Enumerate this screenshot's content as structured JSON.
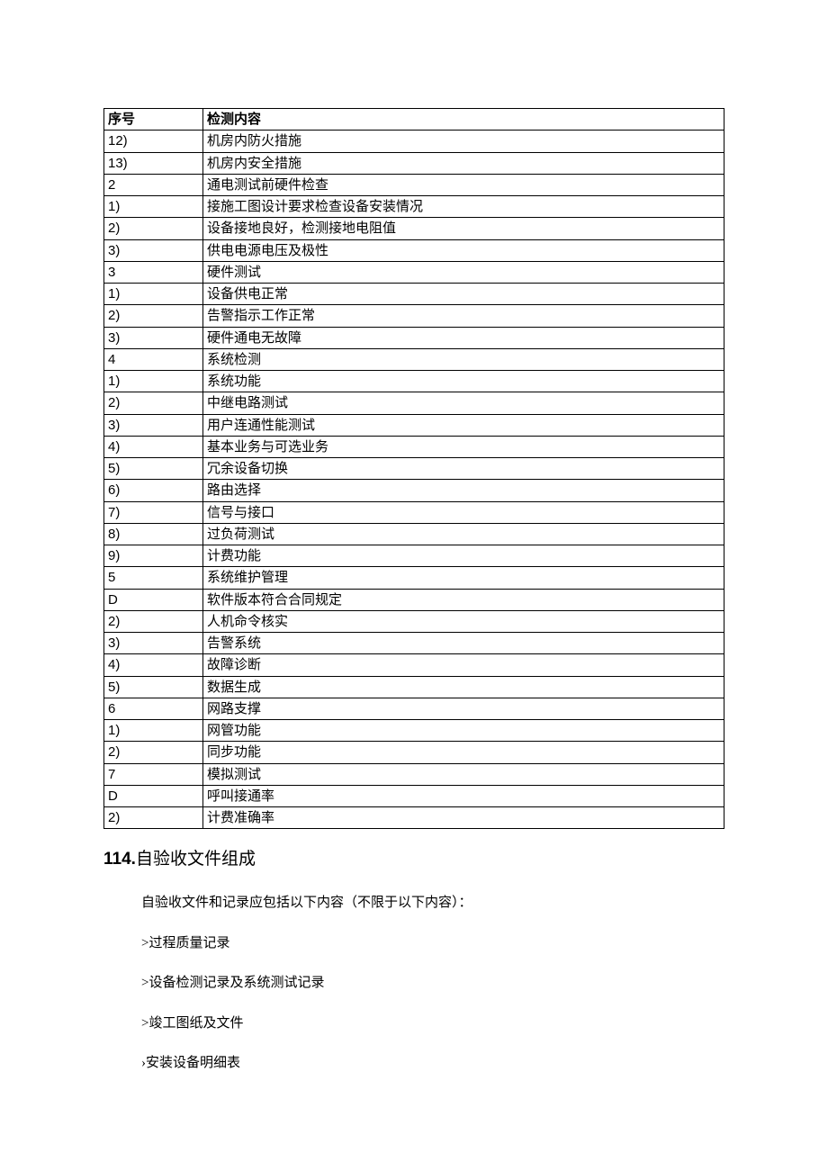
{
  "table": {
    "header": {
      "seq": "序号",
      "content": "检测内容"
    },
    "rows": [
      {
        "seq": "12)",
        "content": "机房内防火措施"
      },
      {
        "seq": "13)",
        "content": "机房内安全措施"
      },
      {
        "seq": "2",
        "content": "通电测试前硬件检查"
      },
      {
        "seq": "1)",
        "content": "接施工图设计要求检查设备安装情况"
      },
      {
        "seq": "2)",
        "content": "设备接地良好，检测接地电阻值"
      },
      {
        "seq": "3)",
        "content": "供电电源电压及极性"
      },
      {
        "seq": "3",
        "content": "硬件测试"
      },
      {
        "seq": "1)",
        "content": "设备供电正常"
      },
      {
        "seq": "2)",
        "content": "告警指示工作正常"
      },
      {
        "seq": "3)",
        "content": "硬件通电无故障"
      },
      {
        "seq": "4",
        "content": "系统检测"
      },
      {
        "seq": "1)",
        "content": "系统功能"
      },
      {
        "seq": "2)",
        "content": "中继电路测试"
      },
      {
        "seq": "3)",
        "content": "用户连通性能测试"
      },
      {
        "seq": "4)",
        "content": "基本业务与可选业务"
      },
      {
        "seq": "5)",
        "content": "冗余设备切换"
      },
      {
        "seq": "6)",
        "content": "路由选择"
      },
      {
        "seq": "7)",
        "content": "信号与接口"
      },
      {
        "seq": "8)",
        "content": "过负荷测试"
      },
      {
        "seq": "9)",
        "content": "计费功能"
      },
      {
        "seq": "5",
        "content": "系统维护管理"
      },
      {
        "seq": "D",
        "content": "软件版本符合合同规定"
      },
      {
        "seq": "2)",
        "content": "人机命令核实"
      },
      {
        "seq": "3)",
        "content": "告警系统"
      },
      {
        "seq": "4)",
        "content": "故障诊断"
      },
      {
        "seq": "5)",
        "content": "数据生成"
      },
      {
        "seq": "6",
        "content": "网路支撑"
      },
      {
        "seq": "1)",
        "content": "网管功能"
      },
      {
        "seq": "2)",
        "content": "同步功能"
      },
      {
        "seq": "7",
        "content": "模拟测试"
      },
      {
        "seq": "D",
        "content": "呼叫接通率"
      },
      {
        "seq": "2)",
        "content": "计费准确率"
      }
    ]
  },
  "heading": {
    "number": "114.",
    "text": "自验收文件组成"
  },
  "intro": "自验收文件和记录应包括以下内容（不限于以下内容）：",
  "bullets": [
    ">过程质量记录",
    ">设备检测记录及系统测试记录",
    ">竣工图纸及文件",
    "›安装设备明细表"
  ]
}
